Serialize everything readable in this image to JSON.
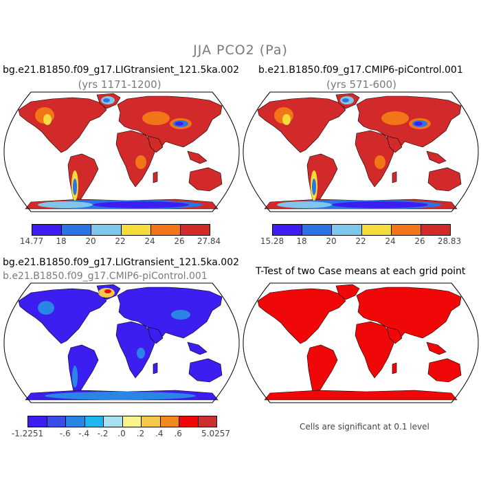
{
  "figure": {
    "title": "JJA PCO2 (Pa)"
  },
  "panels": {
    "top_left": {
      "title": "bg.e21.B1850.f09_g17.LIGtransient_121.5ka.002",
      "subtitle": "(yrs 1171-1200)"
    },
    "top_right": {
      "title": "b.e21.B1850.f09_g17.CMIP6-piControl.001",
      "subtitle": "(yrs 571-600)"
    },
    "bottom_left": {
      "title": "bg.e21.B1850.f09_g17.LIGtransient_121.5ka.002",
      "subtitle": "b.e21.B1850.f09_g17.CMIP6-piControl.001"
    },
    "bottom_right": {
      "title": "T-Test of two Case means at each grid point",
      "note": "Cells are significant at 0.1 level"
    }
  },
  "colorbars": {
    "top_left": {
      "colors": [
        "#3c1ef0",
        "#2a74e6",
        "#7ec6ea",
        "#f4dc3c",
        "#f27518",
        "#d22a2a"
      ],
      "labels": [
        "14.77",
        "18",
        "20",
        "22",
        "24",
        "26",
        "27.84"
      ]
    },
    "top_right": {
      "colors": [
        "#3c1ef0",
        "#2a74e6",
        "#7ec6ea",
        "#f4dc3c",
        "#f27518",
        "#d22a2a"
      ],
      "labels": [
        "15.28",
        "18",
        "20",
        "22",
        "24",
        "26",
        "28.83"
      ]
    },
    "bottom_left": {
      "colors": [
        "#3c1ef0",
        "#3a4cea",
        "#2a86e6",
        "#1eb6ee",
        "#a8e2f2",
        "#fbf38c",
        "#f6c84a",
        "#f08a1e",
        "#f00808",
        "#cd2f2f"
      ],
      "labels": [
        "-1.2251",
        "-.6",
        "-.4",
        "-.2",
        ".0",
        ".2",
        ".4",
        ".6",
        "5.0257"
      ],
      "label_edges": [
        0,
        2,
        3,
        4,
        5,
        6,
        7,
        8,
        10
      ]
    }
  },
  "map_colors": {
    "top_ocean": "#ffffff",
    "land_base_top": "#d22a2a",
    "land_base_diff": "#3c1ef0",
    "ttest_land": "#f00808"
  },
  "map_projection": "Robinson"
}
